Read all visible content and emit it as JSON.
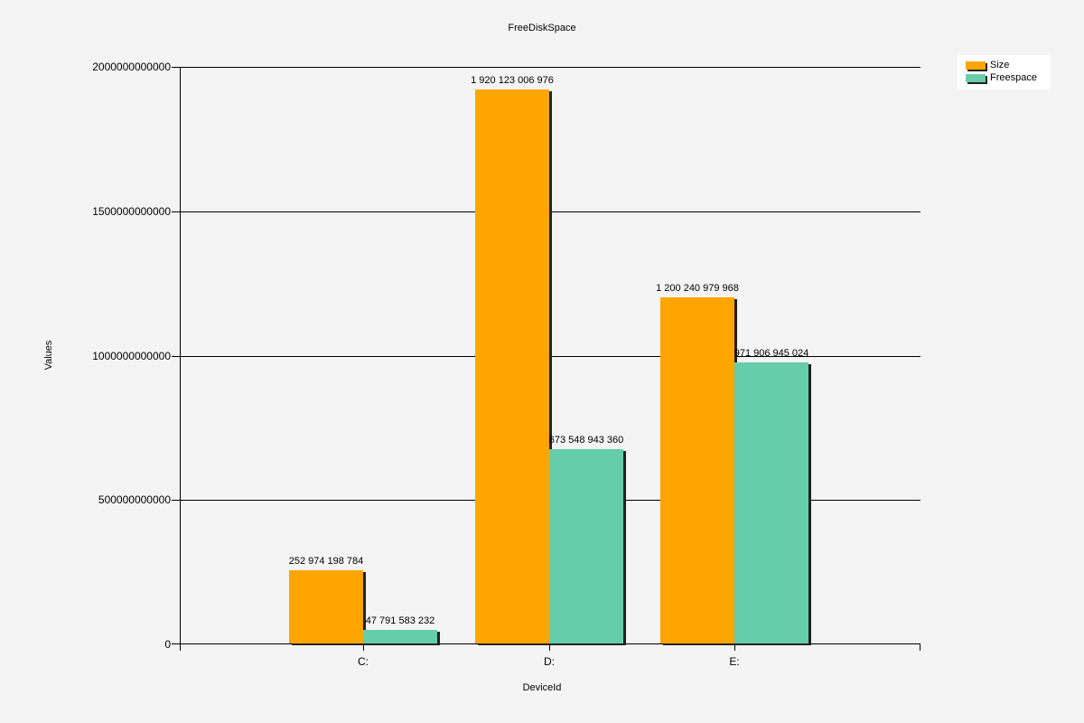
{
  "chart_data": {
    "type": "bar",
    "title": "FreeDiskSpace",
    "xlabel": "DeviceId",
    "ylabel": "Values",
    "categories": [
      "C:",
      "D:",
      "E:"
    ],
    "series": [
      {
        "name": "Size",
        "color": "#ffa500",
        "values": [
          252974198784,
          1920123006976,
          1200240979968
        ],
        "labels": [
          "252 974 198 784",
          "1 920 123 006 976",
          "1 200 240 979 968"
        ]
      },
      {
        "name": "Freespace",
        "color": "#66cdaa",
        "values": [
          47791583232,
          673548943360,
          971906945024
        ],
        "labels": [
          "47 791 583 232",
          "673 548 943 360",
          "971 906 945 024"
        ]
      }
    ],
    "ylim": [
      0,
      2000000000000
    ],
    "yticks": [
      "0",
      "500000000000",
      "1000000000000",
      "1500000000000",
      "2000000000000"
    ],
    "grid": true,
    "legend_position": "top-right"
  }
}
